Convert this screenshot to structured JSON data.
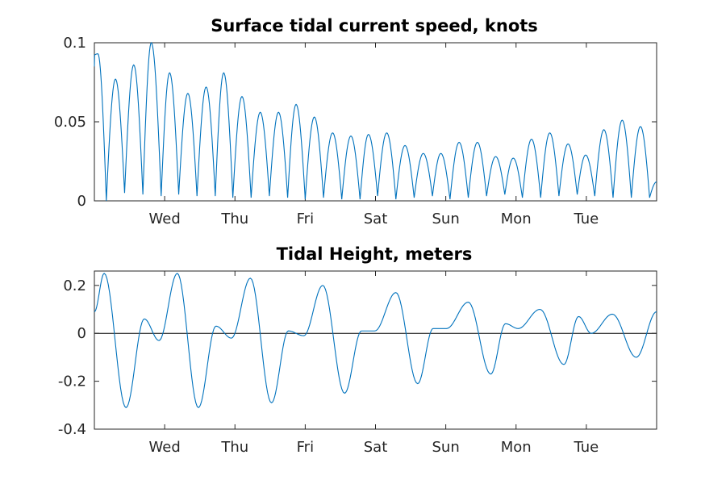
{
  "chart_data": [
    {
      "type": "line",
      "title": "Surface tidal current speed, knots",
      "xlabel": "",
      "ylabel": "",
      "xlim": [
        0,
        8
      ],
      "ylim": [
        0,
        0.1
      ],
      "x_ticks": [
        1,
        2,
        3,
        4,
        5,
        6,
        7
      ],
      "x_tick_labels": [
        "Wed",
        "Thu",
        "Fri",
        "Sat",
        "Sun",
        "Mon",
        "Tue"
      ],
      "y_ticks": [
        0,
        0.05,
        0.1
      ],
      "y_tick_labels": [
        "0",
        "0.05",
        "0.1"
      ],
      "grid": false,
      "series": [
        {
          "color": "#0072BD",
          "peaks": [
            [
              0.05,
              0.093
            ],
            [
              0.3,
              0.077
            ],
            [
              0.56,
              0.086
            ],
            [
              0.81,
              0.1
            ],
            [
              1.07,
              0.081
            ],
            [
              1.33,
              0.068
            ],
            [
              1.59,
              0.072
            ],
            [
              1.84,
              0.081
            ],
            [
              2.1,
              0.066
            ],
            [
              2.36,
              0.056
            ],
            [
              2.62,
              0.056
            ],
            [
              2.87,
              0.061
            ],
            [
              3.13,
              0.053
            ],
            [
              3.39,
              0.043
            ],
            [
              3.65,
              0.041
            ],
            [
              3.9,
              0.042
            ],
            [
              4.16,
              0.043
            ],
            [
              4.42,
              0.035
            ],
            [
              4.68,
              0.03
            ],
            [
              4.93,
              0.03
            ],
            [
              5.19,
              0.037
            ],
            [
              5.45,
              0.037
            ],
            [
              5.71,
              0.028
            ],
            [
              5.96,
              0.027
            ],
            [
              6.22,
              0.039
            ],
            [
              6.48,
              0.043
            ],
            [
              6.74,
              0.036
            ],
            [
              6.99,
              0.029
            ],
            [
              7.25,
              0.045
            ],
            [
              7.51,
              0.051
            ],
            [
              7.77,
              0.047
            ]
          ],
          "troughs": [
            [
              0.17,
              0.0
            ],
            [
              0.43,
              0.005
            ],
            [
              0.69,
              0.004
            ],
            [
              0.95,
              0.003
            ],
            [
              1.2,
              0.004
            ],
            [
              1.46,
              0.003
            ],
            [
              1.72,
              0.003
            ],
            [
              1.97,
              0.002
            ],
            [
              2.23,
              0.002
            ],
            [
              2.49,
              0.003
            ],
            [
              2.75,
              0.002
            ],
            [
              3.0,
              0.001
            ],
            [
              3.26,
              0.002
            ],
            [
              3.52,
              0.001
            ],
            [
              3.78,
              0.001
            ],
            [
              4.03,
              0.003
            ],
            [
              4.29,
              0.001
            ],
            [
              4.55,
              0.002
            ],
            [
              4.81,
              0.003
            ],
            [
              5.06,
              0.001
            ],
            [
              5.32,
              0.002
            ],
            [
              5.58,
              0.003
            ],
            [
              5.84,
              0.004
            ],
            [
              6.09,
              0.002
            ],
            [
              6.35,
              0.002
            ],
            [
              6.61,
              0.003
            ],
            [
              6.87,
              0.004
            ],
            [
              7.12,
              0.003
            ],
            [
              7.38,
              0.002
            ],
            [
              7.64,
              0.002
            ],
            [
              7.9,
              0.002
            ]
          ],
          "start": [
            0.0,
            0.085
          ],
          "end": [
            8.0,
            0.012
          ]
        }
      ]
    },
    {
      "type": "line",
      "title": "Tidal Height, meters",
      "xlabel": "",
      "ylabel": "",
      "xlim": [
        0,
        8
      ],
      "ylim": [
        -0.4,
        0.26
      ],
      "x_ticks": [
        1,
        2,
        3,
        4,
        5,
        6,
        7
      ],
      "x_tick_labels": [
        "Wed",
        "Thu",
        "Fri",
        "Sat",
        "Sun",
        "Mon",
        "Tue"
      ],
      "y_ticks": [
        -0.4,
        -0.2,
        0,
        0.2
      ],
      "y_tick_labels": [
        "-0.4",
        "-0.2",
        "0",
        "0.2"
      ],
      "zero_line": true,
      "grid": false,
      "series": [
        {
          "color": "#0072BD",
          "points": [
            [
              0.0,
              0.09
            ],
            [
              0.14,
              0.25
            ],
            [
              0.45,
              -0.31
            ],
            [
              0.71,
              0.06
            ],
            [
              0.92,
              -0.03
            ],
            [
              1.18,
              0.25
            ],
            [
              1.48,
              -0.31
            ],
            [
              1.73,
              0.03
            ],
            [
              1.95,
              -0.02
            ],
            [
              2.22,
              0.23
            ],
            [
              2.52,
              -0.29
            ],
            [
              2.76,
              0.01
            ],
            [
              2.98,
              -0.01
            ],
            [
              3.25,
              0.2
            ],
            [
              3.56,
              -0.25
            ],
            [
              3.8,
              0.01
            ],
            [
              3.99,
              0.01
            ],
            [
              4.29,
              0.17
            ],
            [
              4.6,
              -0.21
            ],
            [
              4.82,
              0.02
            ],
            [
              5.01,
              0.02
            ],
            [
              5.32,
              0.13
            ],
            [
              5.64,
              -0.17
            ],
            [
              5.85,
              0.04
            ],
            [
              6.03,
              0.02
            ],
            [
              6.34,
              0.1
            ],
            [
              6.68,
              -0.13
            ],
            [
              6.89,
              0.07
            ],
            [
              7.07,
              0.0
            ],
            [
              7.37,
              0.08
            ],
            [
              7.71,
              -0.1
            ],
            [
              8.0,
              0.09
            ]
          ]
        }
      ]
    }
  ]
}
